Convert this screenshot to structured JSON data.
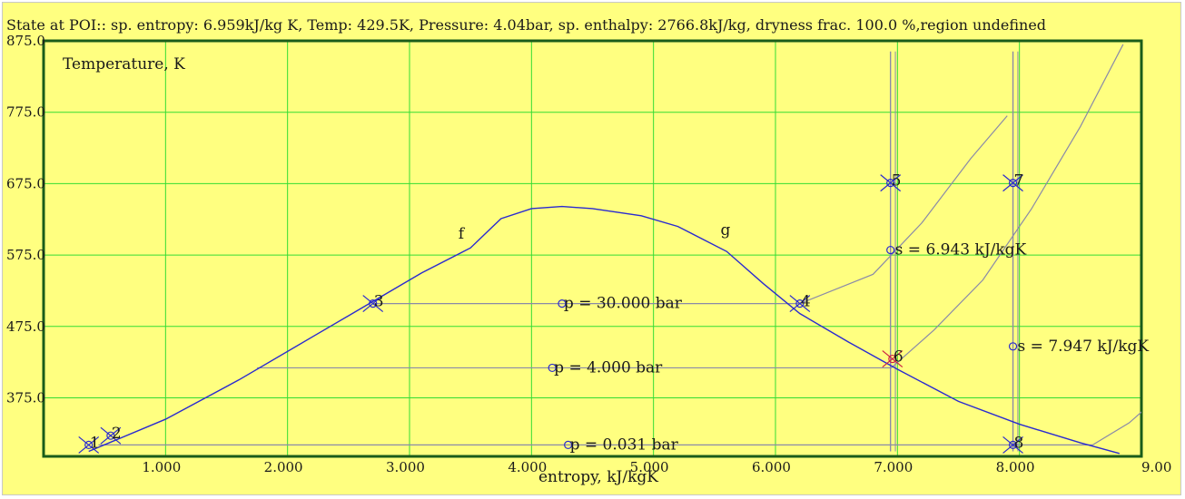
{
  "status": {
    "text": "State at POI:: sp. entropy: 6.959kJ/kg K, Temp: 429.5K, Pressure: 4.04bar, sp. enthalpy: 2766.8kJ/kg, dryness frac. 100.0 %,region undefined"
  },
  "colors": {
    "background": "#ffff80",
    "grid": "#33dd33",
    "frame": "#1a5c1a",
    "dome": "#2a2ad0",
    "isoline": "#8a8aa8",
    "marker": "#2a2ad0",
    "poi": "#cc2244"
  },
  "chart_data": {
    "type": "line",
    "xlabel": "entropy, kJ/kgK",
    "ylabel": "Temperature, K",
    "xlim": [
      0.0,
      9.0
    ],
    "ylim": [
      293.0,
      875.0
    ],
    "x_ticks": [
      1,
      2,
      3,
      4,
      5,
      6,
      7,
      8,
      9
    ],
    "x_tick_labels": [
      "1.000",
      "2.000",
      "3.000",
      "4.000",
      "5.000",
      "6.000",
      "7.000",
      "8.000",
      "9.00"
    ],
    "y_ticks": [
      375,
      475,
      575,
      675,
      775,
      875
    ],
    "y_tick_labels": [
      "375.0",
      "475.0",
      "575.0",
      "675.0",
      "775.0",
      "875.0"
    ],
    "grid": true,
    "saturation_dome": {
      "f": [
        [
          0.37,
          300
        ],
        [
          1.0,
          345
        ],
        [
          1.6,
          400
        ],
        [
          2.2,
          460
        ],
        [
          2.7,
          510
        ],
        [
          3.1,
          550
        ],
        [
          3.5,
          585
        ],
        [
          3.75,
          626
        ],
        [
          4.0,
          640
        ],
        [
          4.25,
          643
        ],
        [
          4.5,
          640
        ],
        [
          4.9,
          630
        ],
        [
          5.2,
          615
        ]
      ],
      "g": [
        [
          5.2,
          615
        ],
        [
          5.6,
          580
        ],
        [
          5.9,
          535
        ],
        [
          6.2,
          493
        ],
        [
          6.6,
          453
        ],
        [
          7.0,
          415
        ],
        [
          7.5,
          370
        ],
        [
          8.0,
          338
        ],
        [
          8.5,
          312
        ],
        [
          8.82,
          297
        ]
      ],
      "labels": [
        "f",
        "g"
      ]
    },
    "isobars": [
      {
        "label": "p = 30.000 bar",
        "points": [
          [
            2.7,
            507
          ],
          [
            6.2,
            507
          ],
          [
            6.8,
            548
          ],
          [
            7.2,
            620
          ],
          [
            7.6,
            710
          ],
          [
            7.9,
            770
          ]
        ]
      },
      {
        "label": "p = 4.000 bar",
        "points": [
          [
            1.75,
            417
          ],
          [
            6.95,
            417
          ],
          [
            7.3,
            470
          ],
          [
            7.7,
            540
          ],
          [
            8.1,
            640
          ],
          [
            8.5,
            755
          ],
          [
            8.85,
            870
          ]
        ]
      },
      {
        "label": "p = 0.031 bar",
        "points": [
          [
            0.45,
            309
          ],
          [
            8.6,
            309
          ],
          [
            8.9,
            340
          ],
          [
            9.3,
            400
          ]
        ]
      }
    ],
    "isentropes": [
      {
        "label": "s = 6.943 kJ/kgK",
        "s": 6.943,
        "T": [
          300,
          860
        ]
      },
      {
        "label": "s = 7.947 kJ/kgK",
        "s": 7.947,
        "T": [
          300,
          860
        ]
      }
    ],
    "state_points": [
      {
        "n": "1",
        "s": 0.37,
        "T": 309
      },
      {
        "n": "2",
        "s": 0.55,
        "T": 322
      },
      {
        "n": "3",
        "s": 2.7,
        "T": 507
      },
      {
        "n": "4",
        "s": 6.2,
        "T": 507
      },
      {
        "n": "5",
        "s": 6.943,
        "T": 676
      },
      {
        "n": "6",
        "s": 6.959,
        "T": 429.5
      },
      {
        "n": "7",
        "s": 7.947,
        "T": 676
      },
      {
        "n": "8",
        "s": 7.947,
        "T": 309
      }
    ],
    "poi": {
      "s": 6.959,
      "T": 429.5
    }
  }
}
